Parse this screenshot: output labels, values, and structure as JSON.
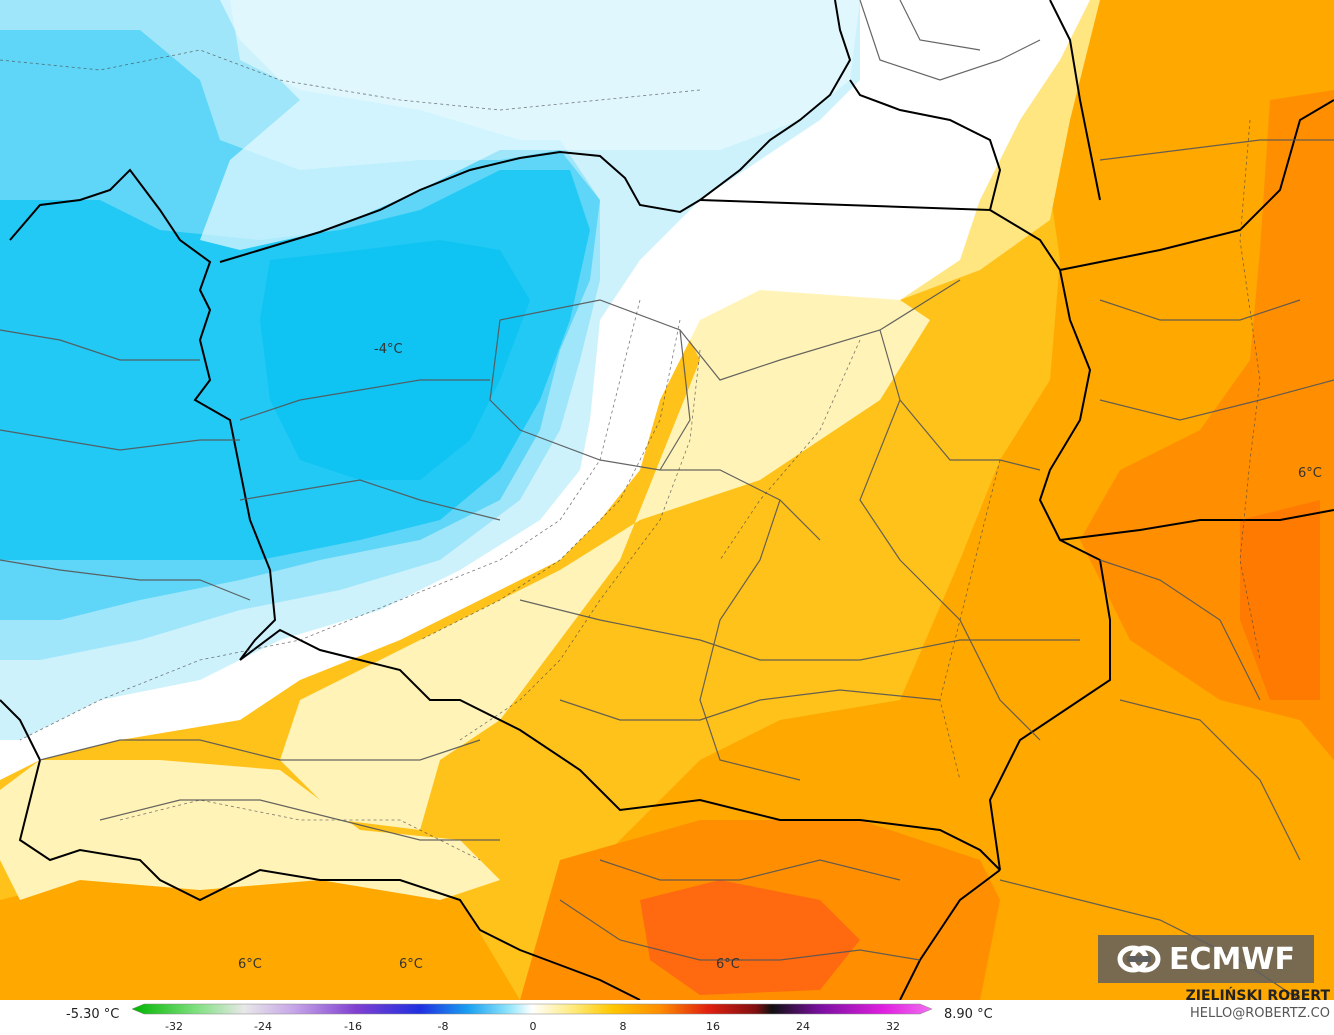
{
  "map": {
    "contour_labels": [
      "-4°C",
      "6°C",
      "6°C",
      "6°C",
      "6°C"
    ]
  },
  "colors": {
    "very_cold": "#0fc4f2",
    "cold": "#5fd6f7",
    "cool": "#b8ecfb",
    "near_zero": "#ffffff",
    "mild": "#fff3b8",
    "warm_yellow": "#ffd400",
    "orange": "#ffa800",
    "dark_orange": "#ff7f00",
    "red_orange": "#ff4e1a"
  },
  "legend": {
    "min_label": "-5.30 °C",
    "max_label": "8.90 °C",
    "ticks": [
      "-32",
      "-24",
      "-16",
      "-8",
      "0",
      "8",
      "16",
      "24",
      "32"
    ]
  },
  "branding": {
    "logo_text": "ECMWF",
    "author": "ZIELIŃSKI ROBERT",
    "email": "HELLO@ROBERTZ.CO"
  }
}
